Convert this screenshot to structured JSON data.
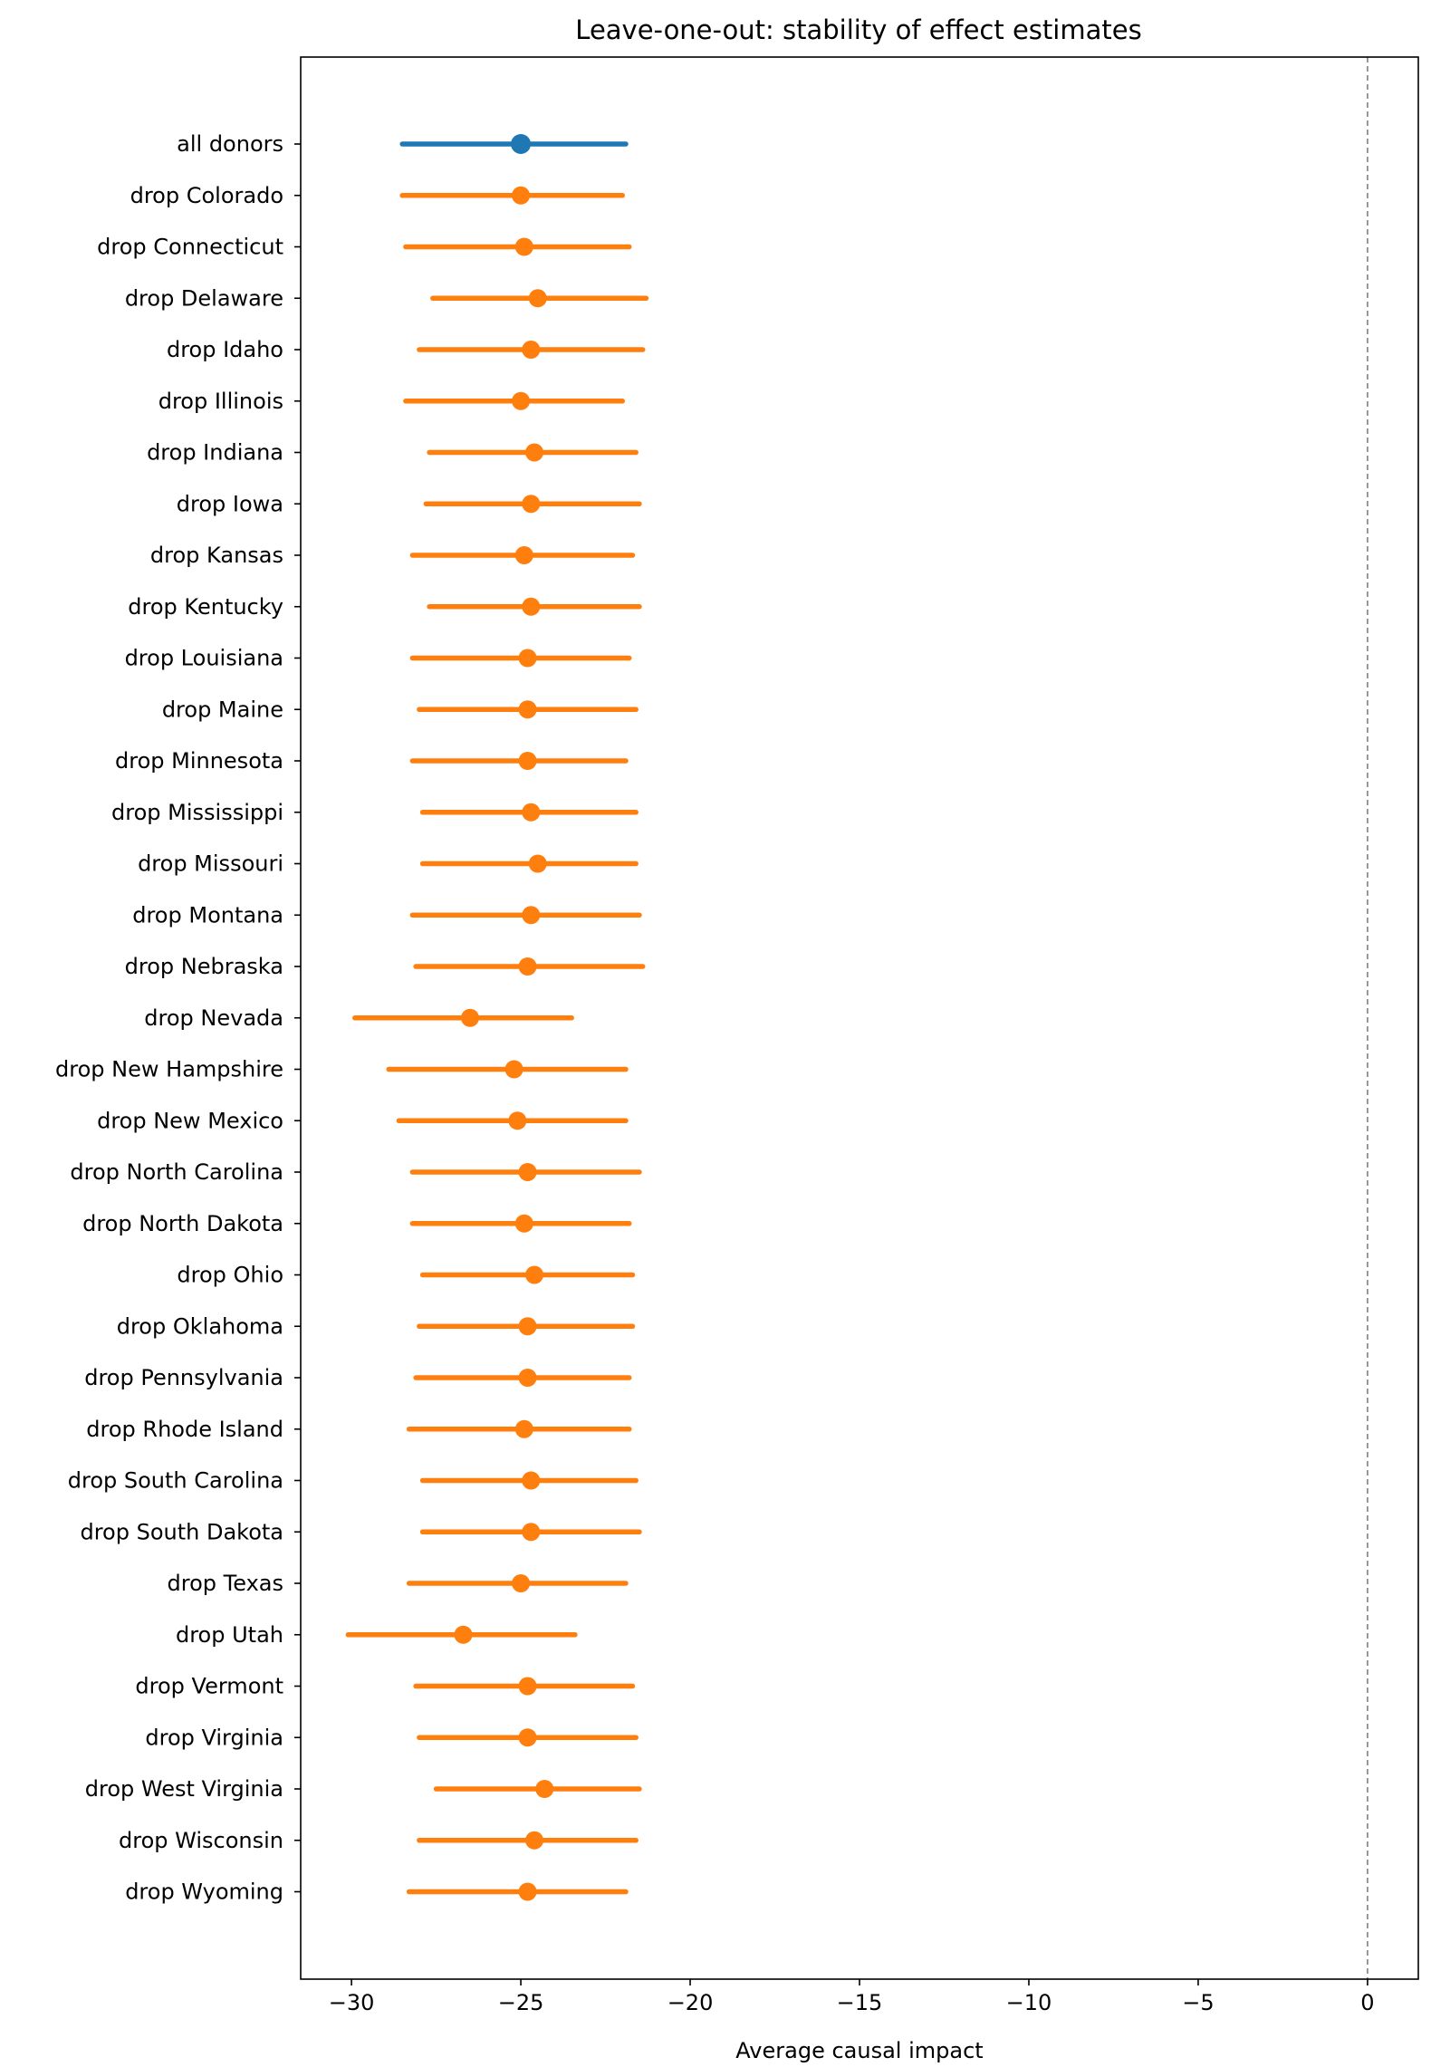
{
  "chart_data": {
    "type": "forest",
    "title": "Leave-one-out: stability of effect estimates",
    "xlabel": "Average causal impact",
    "ylabel": "",
    "xlim": [
      -31.5,
      1.5
    ],
    "xticks": [
      -30,
      -25,
      -20,
      -15,
      -10,
      -5,
      0
    ],
    "xtick_labels": [
      "−30",
      "−25",
      "−20",
      "−15",
      "−10",
      "−5",
      "0"
    ],
    "reference_line": 0,
    "colors": {
      "baseline": "#1f77b4",
      "leave_one_out": "#ff7f0e",
      "reference": "#808080"
    },
    "series": [
      {
        "label": "all donors",
        "estimate": -25.0,
        "lower": -28.5,
        "upper": -21.9,
        "group": "baseline"
      },
      {
        "label": "drop Colorado",
        "estimate": -25.0,
        "lower": -28.5,
        "upper": -22.0,
        "group": "leave_one_out"
      },
      {
        "label": "drop Connecticut",
        "estimate": -24.9,
        "lower": -28.4,
        "upper": -21.8,
        "group": "leave_one_out"
      },
      {
        "label": "drop Delaware",
        "estimate": -24.5,
        "lower": -27.6,
        "upper": -21.3,
        "group": "leave_one_out"
      },
      {
        "label": "drop Idaho",
        "estimate": -24.7,
        "lower": -28.0,
        "upper": -21.4,
        "group": "leave_one_out"
      },
      {
        "label": "drop Illinois",
        "estimate": -25.0,
        "lower": -28.4,
        "upper": -22.0,
        "group": "leave_one_out"
      },
      {
        "label": "drop Indiana",
        "estimate": -24.6,
        "lower": -27.7,
        "upper": -21.6,
        "group": "leave_one_out"
      },
      {
        "label": "drop Iowa",
        "estimate": -24.7,
        "lower": -27.8,
        "upper": -21.5,
        "group": "leave_one_out"
      },
      {
        "label": "drop Kansas",
        "estimate": -24.9,
        "lower": -28.2,
        "upper": -21.7,
        "group": "leave_one_out"
      },
      {
        "label": "drop Kentucky",
        "estimate": -24.7,
        "lower": -27.7,
        "upper": -21.5,
        "group": "leave_one_out"
      },
      {
        "label": "drop Louisiana",
        "estimate": -24.8,
        "lower": -28.2,
        "upper": -21.8,
        "group": "leave_one_out"
      },
      {
        "label": "drop Maine",
        "estimate": -24.8,
        "lower": -28.0,
        "upper": -21.6,
        "group": "leave_one_out"
      },
      {
        "label": "drop Minnesota",
        "estimate": -24.8,
        "lower": -28.2,
        "upper": -21.9,
        "group": "leave_one_out"
      },
      {
        "label": "drop Mississippi",
        "estimate": -24.7,
        "lower": -27.9,
        "upper": -21.6,
        "group": "leave_one_out"
      },
      {
        "label": "drop Missouri",
        "estimate": -24.5,
        "lower": -27.9,
        "upper": -21.6,
        "group": "leave_one_out"
      },
      {
        "label": "drop Montana",
        "estimate": -24.7,
        "lower": -28.2,
        "upper": -21.5,
        "group": "leave_one_out"
      },
      {
        "label": "drop Nebraska",
        "estimate": -24.8,
        "lower": -28.1,
        "upper": -21.4,
        "group": "leave_one_out"
      },
      {
        "label": "drop Nevada",
        "estimate": -26.5,
        "lower": -29.9,
        "upper": -23.5,
        "group": "leave_one_out"
      },
      {
        "label": "drop New Hampshire",
        "estimate": -25.2,
        "lower": -28.9,
        "upper": -21.9,
        "group": "leave_one_out"
      },
      {
        "label": "drop New Mexico",
        "estimate": -25.1,
        "lower": -28.6,
        "upper": -21.9,
        "group": "leave_one_out"
      },
      {
        "label": "drop North Carolina",
        "estimate": -24.8,
        "lower": -28.2,
        "upper": -21.5,
        "group": "leave_one_out"
      },
      {
        "label": "drop North Dakota",
        "estimate": -24.9,
        "lower": -28.2,
        "upper": -21.8,
        "group": "leave_one_out"
      },
      {
        "label": "drop Ohio",
        "estimate": -24.6,
        "lower": -27.9,
        "upper": -21.7,
        "group": "leave_one_out"
      },
      {
        "label": "drop Oklahoma",
        "estimate": -24.8,
        "lower": -28.0,
        "upper": -21.7,
        "group": "leave_one_out"
      },
      {
        "label": "drop Pennsylvania",
        "estimate": -24.8,
        "lower": -28.1,
        "upper": -21.8,
        "group": "leave_one_out"
      },
      {
        "label": "drop Rhode Island",
        "estimate": -24.9,
        "lower": -28.3,
        "upper": -21.8,
        "group": "leave_one_out"
      },
      {
        "label": "drop South Carolina",
        "estimate": -24.7,
        "lower": -27.9,
        "upper": -21.6,
        "group": "leave_one_out"
      },
      {
        "label": "drop South Dakota",
        "estimate": -24.7,
        "lower": -27.9,
        "upper": -21.5,
        "group": "leave_one_out"
      },
      {
        "label": "drop Texas",
        "estimate": -25.0,
        "lower": -28.3,
        "upper": -21.9,
        "group": "leave_one_out"
      },
      {
        "label": "drop Utah",
        "estimate": -26.7,
        "lower": -30.1,
        "upper": -23.4,
        "group": "leave_one_out"
      },
      {
        "label": "drop Vermont",
        "estimate": -24.8,
        "lower": -28.1,
        "upper": -21.7,
        "group": "leave_one_out"
      },
      {
        "label": "drop Virginia",
        "estimate": -24.8,
        "lower": -28.0,
        "upper": -21.6,
        "group": "leave_one_out"
      },
      {
        "label": "drop West Virginia",
        "estimate": -24.3,
        "lower": -27.5,
        "upper": -21.5,
        "group": "leave_one_out"
      },
      {
        "label": "drop Wisconsin",
        "estimate": -24.6,
        "lower": -28.0,
        "upper": -21.6,
        "group": "leave_one_out"
      },
      {
        "label": "drop Wyoming",
        "estimate": -24.8,
        "lower": -28.3,
        "upper": -21.9,
        "group": "leave_one_out"
      }
    ]
  }
}
